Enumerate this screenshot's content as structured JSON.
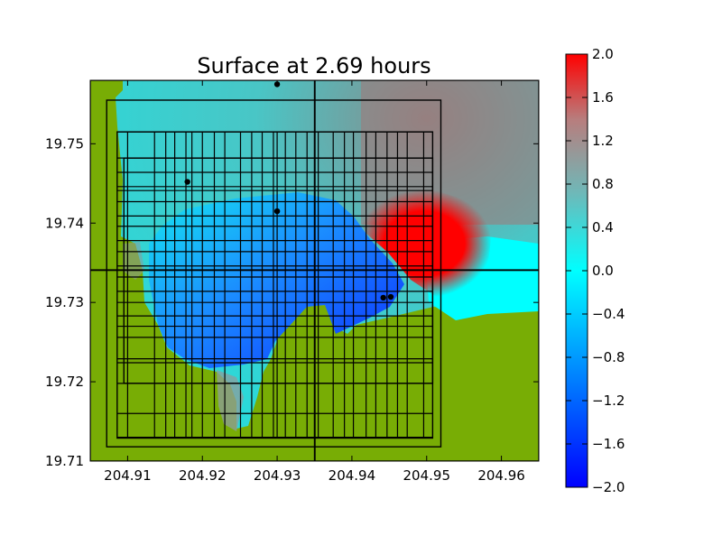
{
  "chart_data": {
    "type": "heatmap",
    "title": "Surface at 2.69 hours",
    "xlabel": "",
    "ylabel": "",
    "xlim": [
      204.905,
      204.965
    ],
    "ylim": [
      19.71,
      19.758
    ],
    "x_ticks": [
      204.91,
      204.92,
      204.93,
      204.94,
      204.95,
      204.96
    ],
    "x_tick_labels": [
      "204.91",
      "204.92",
      "204.93",
      "204.94",
      "204.95",
      "204.96"
    ],
    "y_ticks": [
      19.71,
      19.72,
      19.73,
      19.74,
      19.75
    ],
    "y_tick_labels": [
      "19.71",
      "19.72",
      "19.73",
      "19.74",
      "19.75"
    ],
    "colorbar": {
      "range": [
        -2.0,
        2.0
      ],
      "ticks": [
        2.0,
        1.6,
        1.2,
        0.8,
        0.4,
        0.0,
        -0.4,
        -0.8,
        -1.2,
        -1.6,
        -2.0
      ],
      "tick_labels": [
        "2.0",
        "1.6",
        "1.2",
        "0.8",
        "0.4",
        "0.0",
        "−0.4",
        "−0.8",
        "−1.2",
        "−1.6",
        "−2.0"
      ],
      "colors": [
        "#0000ff",
        "#00ffff",
        "#ff0000"
      ]
    },
    "land_color": "#78ad05",
    "gauges": [
      {
        "x": 204.93,
        "y": 19.7575
      },
      {
        "x": 204.918,
        "y": 19.7452
      },
      {
        "x": 204.93,
        "y": 19.7415
      },
      {
        "x": 204.9442,
        "y": 19.7306
      },
      {
        "x": 204.9452,
        "y": 19.7307
      }
    ],
    "grid_lines": {
      "x": [
        204.9,
        204.9025,
        204.905,
        204.91,
        204.9136,
        204.9151,
        204.9163,
        204.9178,
        204.9186,
        204.92,
        204.9216,
        204.923,
        204.9251,
        204.9266,
        204.928,
        204.9295,
        204.93,
        204.9311,
        204.9325,
        204.934,
        204.935,
        204.9355,
        204.9375,
        204.939,
        204.9402,
        204.9419,
        204.9432,
        204.9447,
        204.9461,
        204.9474,
        204.9496,
        204.9512,
        204.952,
        204.966
      ],
      "y": [
        19.7083,
        19.7118,
        19.713,
        19.716,
        19.7198,
        19.7224,
        19.7229,
        19.7256,
        19.727,
        19.7283,
        19.73,
        19.7314,
        19.7332,
        19.7341,
        19.7346,
        19.7364,
        19.7378,
        19.7396,
        19.7409,
        19.7427,
        19.7441,
        19.7446,
        19.7464,
        19.7482,
        19.7515,
        19.7555,
        19.7578
      ]
    },
    "regions": [
      {
        "x": [
          204.905,
          204.965
        ],
        "y": [
          19.71,
          19.758
        ]
      },
      {
        "x": [
          204.9072,
          204.9519
        ],
        "y": [
          19.7118,
          19.7555
        ]
      },
      {
        "x": [
          204.9086,
          204.9508
        ],
        "y": [
          19.7129,
          19.7515
        ]
      },
      {
        "x": [
          204.9095,
          204.9508
        ],
        "y": [
          19.7198,
          19.7482
        ]
      },
      {
        "x": [
          204.905,
          204.965
        ],
        "y": [
          19.7341,
          19.7341
        ]
      },
      {
        "x": [
          204.935,
          204.935
        ],
        "y": [
          19.71,
          19.758
        ]
      }
    ]
  }
}
